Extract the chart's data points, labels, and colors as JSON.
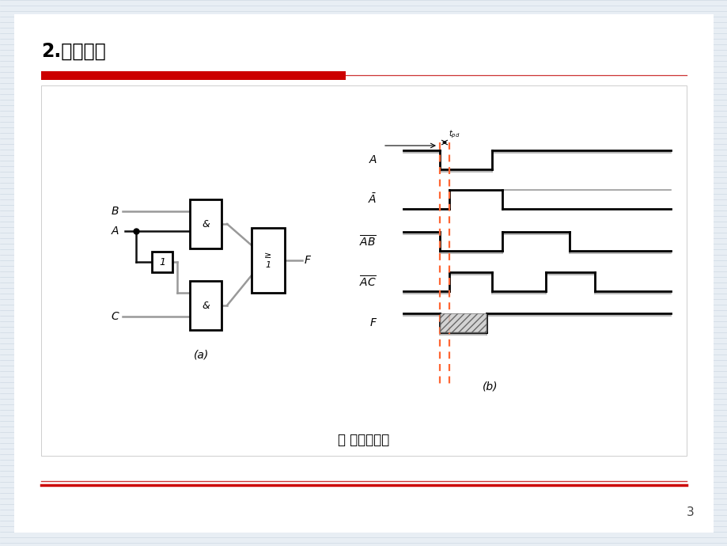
{
  "title": "2.冒险现象",
  "bg_color": "#e8eef4",
  "slide_bg": "#ffffff",
  "red_bar_color": "#cc0000",
  "caption": "图１０型冒险",
  "page_number": "3",
  "dashed_line_color": "#ff6633",
  "signal_color": "#000000",
  "gray_color": "#888888",
  "label_A": "A",
  "label_Abar": "Ā",
  "label_AB": "AB",
  "label_AC": "AC",
  "label_F": "F",
  "label_a": "(a)",
  "label_b": "(b)"
}
